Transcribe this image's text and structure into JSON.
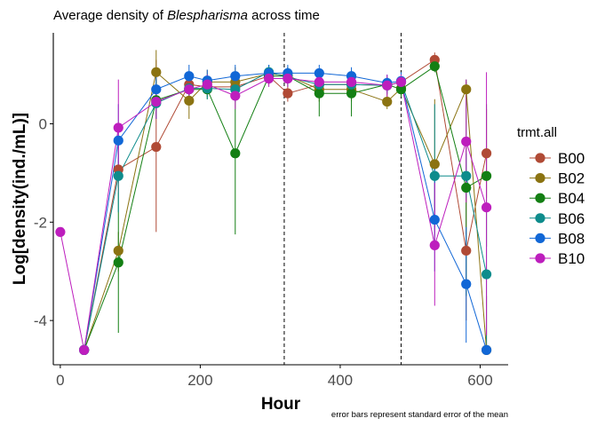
{
  "chart_data": {
    "type": "line",
    "title": {
      "prefix": "Average density of ",
      "emphasis": "Blespharisma",
      "suffix": " across time"
    },
    "xlabel": "Hour",
    "ylabel": "Log[density(ind./mL)]",
    "caption": "error bars represent standard error of the mean",
    "xlim": [
      -10,
      640
    ],
    "ylim": [
      -4.9,
      1.85
    ],
    "x_ticks": [
      0,
      200,
      400,
      600
    ],
    "x_tick_labels": [
      "0",
      "200",
      "400",
      "600"
    ],
    "y_ticks": [
      -4,
      -2,
      0
    ],
    "y_tick_labels": [
      "-4",
      "-2",
      "0"
    ],
    "grid": false,
    "vlines": [
      320,
      487
    ],
    "legend": {
      "title": "trmt.all",
      "position": "right"
    },
    "series": [
      {
        "name": "B00",
        "color": "#B04A35",
        "points": [
          {
            "x": 34,
            "y": -4.6
          },
          {
            "x": 83,
            "y": -0.93,
            "lo": -1.4,
            "hi": -0.5
          },
          {
            "x": 137,
            "y": -0.47,
            "lo": -2.2,
            "hi": 1.3
          },
          {
            "x": 184,
            "y": 0.8,
            "lo": 0.6,
            "hi": 1.0
          },
          {
            "x": 210,
            "y": 0.75,
            "lo": 0.55,
            "hi": 0.95
          },
          {
            "x": 250,
            "y": 0.75,
            "lo": 0.5,
            "hi": 1.0
          },
          {
            "x": 298,
            "y": 0.97,
            "lo": 0.8,
            "hi": 1.15
          },
          {
            "x": 325,
            "y": 0.62,
            "lo": 0.45,
            "hi": 0.8
          },
          {
            "x": 370,
            "y": 0.8,
            "lo": 0.55,
            "hi": 1.05
          },
          {
            "x": 416,
            "y": 0.8,
            "lo": 0.6,
            "hi": 1.0
          },
          {
            "x": 467,
            "y": 0.78,
            "lo": 0.6,
            "hi": 0.95
          },
          {
            "x": 487,
            "y": 0.85,
            "lo": 0.7,
            "hi": 1.0
          },
          {
            "x": 535,
            "y": 1.3,
            "lo": 1.2,
            "hi": 1.45
          },
          {
            "x": 580,
            "y": -2.58,
            "lo": -4.0,
            "hi": -1.2
          },
          {
            "x": 609,
            "y": -0.6,
            "lo": -1.5,
            "hi": 0.3
          }
        ]
      },
      {
        "name": "B02",
        "color": "#8B7311",
        "points": [
          {
            "x": 34,
            "y": -4.6
          },
          {
            "x": 83,
            "y": -2.58,
            "lo": -3.0,
            "hi": -2.2
          },
          {
            "x": 137,
            "y": 1.05,
            "lo": 0.6,
            "hi": 1.5
          },
          {
            "x": 184,
            "y": 0.47,
            "lo": 0.1,
            "hi": 0.85
          },
          {
            "x": 210,
            "y": 0.85,
            "lo": 0.6,
            "hi": 1.1
          },
          {
            "x": 250,
            "y": 0.85,
            "lo": 0.55,
            "hi": 1.15
          },
          {
            "x": 298,
            "y": 1.02,
            "lo": 0.85,
            "hi": 1.2
          },
          {
            "x": 325,
            "y": 0.98,
            "lo": 0.8,
            "hi": 1.15
          },
          {
            "x": 370,
            "y": 0.7,
            "lo": 0.45,
            "hi": 0.95
          },
          {
            "x": 416,
            "y": 0.7,
            "lo": 0.45,
            "hi": 0.95
          },
          {
            "x": 467,
            "y": 0.45,
            "lo": 0.3,
            "hi": 0.6
          },
          {
            "x": 487,
            "y": 0.72,
            "lo": 0.55,
            "hi": 0.9
          },
          {
            "x": 535,
            "y": -0.82,
            "lo": -2.1,
            "hi": 0.5
          },
          {
            "x": 580,
            "y": 0.7,
            "lo": 0.55,
            "hi": 0.85
          },
          {
            "x": 609,
            "y": -4.6,
            "lo": -4.6,
            "hi": -3.5
          }
        ]
      },
      {
        "name": "B04",
        "color": "#137F13",
        "points": [
          {
            "x": 34,
            "y": -4.6
          },
          {
            "x": 83,
            "y": -2.82,
            "lo": -4.25,
            "hi": -1.4
          },
          {
            "x": 137,
            "y": 0.48,
            "lo": 0.1,
            "hi": 0.9
          },
          {
            "x": 184,
            "y": 0.7,
            "lo": 0.45,
            "hi": 0.95
          },
          {
            "x": 210,
            "y": 0.7,
            "lo": 0.5,
            "hi": 0.9
          },
          {
            "x": 250,
            "y": -0.6,
            "lo": -2.25,
            "hi": 1.05
          },
          {
            "x": 298,
            "y": 0.97,
            "lo": 0.8,
            "hi": 1.15
          },
          {
            "x": 325,
            "y": 0.97,
            "lo": 0.8,
            "hi": 1.15
          },
          {
            "x": 370,
            "y": 0.62,
            "lo": 0.15,
            "hi": 1.1
          },
          {
            "x": 416,
            "y": 0.62,
            "lo": 0.15,
            "hi": 1.1
          },
          {
            "x": 467,
            "y": 0.8,
            "lo": 0.65,
            "hi": 0.95
          },
          {
            "x": 487,
            "y": 0.7,
            "lo": 0.55,
            "hi": 0.85
          },
          {
            "x": 535,
            "y": 1.17,
            "lo": 1.05,
            "hi": 1.3
          },
          {
            "x": 580,
            "y": -1.3,
            "lo": -3.5,
            "hi": 0.9
          },
          {
            "x": 609,
            "y": -1.06,
            "lo": -2.5,
            "hi": 0.4
          }
        ]
      },
      {
        "name": "B06",
        "color": "#0E8C8C",
        "points": [
          {
            "x": 34,
            "y": -4.6
          },
          {
            "x": 83,
            "y": -1.06,
            "lo": -1.8,
            "hi": -0.3
          },
          {
            "x": 137,
            "y": 0.42,
            "lo": 0.1,
            "hi": 0.75
          },
          {
            "x": 184,
            "y": 0.72,
            "lo": 0.5,
            "hi": 0.95
          },
          {
            "x": 210,
            "y": 0.72,
            "lo": 0.5,
            "hi": 0.95
          },
          {
            "x": 250,
            "y": 0.7,
            "lo": 0.45,
            "hi": 0.95
          },
          {
            "x": 298,
            "y": 1.05,
            "lo": 0.9,
            "hi": 1.2
          },
          {
            "x": 325,
            "y": 0.95,
            "lo": 0.75,
            "hi": 1.15
          },
          {
            "x": 370,
            "y": 0.8,
            "lo": 0.6,
            "hi": 1.0
          },
          {
            "x": 416,
            "y": 0.8,
            "lo": 0.6,
            "hi": 1.0
          },
          {
            "x": 467,
            "y": 0.78,
            "lo": 0.6,
            "hi": 0.95
          },
          {
            "x": 487,
            "y": 0.85,
            "lo": 0.7,
            "hi": 1.0
          },
          {
            "x": 535,
            "y": -1.06,
            "lo": -2.5,
            "hi": 0.4
          },
          {
            "x": 580,
            "y": -1.06,
            "lo": -1.5,
            "hi": -0.6
          },
          {
            "x": 609,
            "y": -3.06,
            "lo": -4.5,
            "hi": -1.6
          }
        ]
      },
      {
        "name": "B08",
        "color": "#1167D6",
        "points": [
          {
            "x": 34,
            "y": -4.6
          },
          {
            "x": 83,
            "y": -0.34,
            "lo": -1.1,
            "hi": 0.4
          },
          {
            "x": 137,
            "y": 0.7,
            "lo": 0.3,
            "hi": 1.1
          },
          {
            "x": 184,
            "y": 0.97,
            "lo": 0.75,
            "hi": 1.2
          },
          {
            "x": 210,
            "y": 0.88,
            "lo": 0.65,
            "hi": 1.1
          },
          {
            "x": 250,
            "y": 0.97,
            "lo": 0.75,
            "hi": 1.2
          },
          {
            "x": 298,
            "y": 1.03,
            "lo": 0.85,
            "hi": 1.2
          },
          {
            "x": 325,
            "y": 1.03,
            "lo": 0.85,
            "hi": 1.2
          },
          {
            "x": 370,
            "y": 1.03,
            "lo": 0.85,
            "hi": 1.2
          },
          {
            "x": 416,
            "y": 0.97,
            "lo": 0.8,
            "hi": 1.15
          },
          {
            "x": 467,
            "y": 0.83,
            "lo": 0.65,
            "hi": 1.0
          },
          {
            "x": 487,
            "y": 0.87,
            "lo": 0.7,
            "hi": 1.05
          },
          {
            "x": 535,
            "y": -1.95,
            "lo": -3.0,
            "hi": -0.9
          },
          {
            "x": 580,
            "y": -3.26,
            "lo": -4.45,
            "hi": -2.1
          },
          {
            "x": 609,
            "y": -4.6,
            "lo": -4.6,
            "hi": -4.6
          }
        ]
      },
      {
        "name": "B10",
        "color": "#BD1EBD",
        "points": [
          {
            "x": 0,
            "y": -2.2
          },
          {
            "x": 34,
            "y": -4.6
          },
          {
            "x": 83,
            "y": -0.08,
            "lo": -1.1,
            "hi": 0.9
          },
          {
            "x": 137,
            "y": 0.45,
            "lo": 0.1,
            "hi": 0.8
          },
          {
            "x": 184,
            "y": 0.7,
            "lo": 0.45,
            "hi": 0.95
          },
          {
            "x": 210,
            "y": 0.8,
            "lo": 0.6,
            "hi": 1.0
          },
          {
            "x": 250,
            "y": 0.57,
            "lo": 0.3,
            "hi": 0.85
          },
          {
            "x": 298,
            "y": 0.92,
            "lo": 0.75,
            "hi": 1.1
          },
          {
            "x": 325,
            "y": 0.92,
            "lo": 0.75,
            "hi": 1.1
          },
          {
            "x": 370,
            "y": 0.85,
            "lo": 0.65,
            "hi": 1.05
          },
          {
            "x": 416,
            "y": 0.85,
            "lo": 0.65,
            "hi": 1.05
          },
          {
            "x": 467,
            "y": 0.78,
            "lo": 0.55,
            "hi": 1.0
          },
          {
            "x": 487,
            "y": 0.85,
            "lo": 0.7,
            "hi": 1.0
          },
          {
            "x": 535,
            "y": -2.47,
            "lo": -3.7,
            "hi": -1.2
          },
          {
            "x": 580,
            "y": -0.36,
            "lo": -1.6,
            "hi": 0.9
          },
          {
            "x": 609,
            "y": -1.7,
            "lo": -4.3,
            "hi": 1.05
          }
        ]
      }
    ]
  }
}
